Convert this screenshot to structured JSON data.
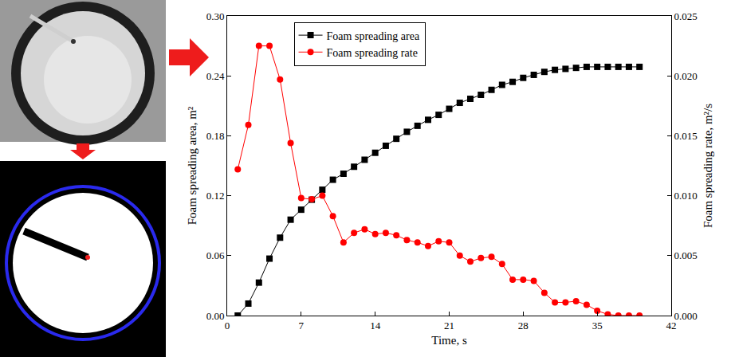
{
  "chart_data": {
    "type": "line",
    "x_label": "Time, s",
    "y_label": "Foam spreading area, m²",
    "y2_label": "Foam spreading rate, m²/s",
    "x": [
      1,
      2,
      3,
      4,
      5,
      6,
      7,
      8,
      9,
      10,
      11,
      12,
      13,
      14,
      15,
      16,
      17,
      18,
      19,
      20,
      21,
      22,
      23,
      24,
      25,
      26,
      27,
      28,
      29,
      30,
      31,
      32,
      33,
      34,
      35,
      36,
      37,
      38,
      39
    ],
    "series": [
      {
        "name": "Foam spreading area",
        "color": "#000000",
        "marker": "square",
        "line_style": "solid",
        "values": [
          0.0,
          0.012,
          0.033,
          0.057,
          0.078,
          0.096,
          0.106,
          0.116,
          0.126,
          0.136,
          0.142,
          0.149,
          0.156,
          0.163,
          0.17,
          0.177,
          0.184,
          0.19,
          0.196,
          0.201,
          0.207,
          0.213,
          0.217,
          0.221,
          0.226,
          0.231,
          0.234,
          0.238,
          0.241,
          0.244,
          0.246,
          0.247,
          0.248,
          0.249,
          0.249,
          0.249,
          0.249,
          0.249,
          0.249
        ]
      },
      {
        "name": "Foam spreading rate",
        "color": "#ff0000",
        "marker": "circle",
        "line_style": "solid",
        "axis": "y2",
        "values": [
          0.0122,
          0.0159,
          0.0225,
          0.0225,
          0.0197,
          0.0144,
          0.0098,
          0.0097,
          0.01,
          0.0083,
          0.0061,
          0.0069,
          0.0072,
          0.0068,
          0.0069,
          0.0067,
          0.0063,
          0.0061,
          0.0058,
          0.0062,
          0.0061,
          0.005,
          0.0045,
          0.0048,
          0.0049,
          0.0043,
          0.003,
          0.003,
          0.0029,
          0.0019,
          0.0011,
          0.0011,
          0.0012,
          0.0009,
          0.0004,
          0.0001,
          0.0,
          0.0,
          0.0
        ]
      }
    ],
    "xlim": [
      0,
      42
    ],
    "xticks": [
      0,
      7,
      14,
      21,
      28,
      35,
      42
    ],
    "ylim": [
      0,
      0.3
    ],
    "yticks": [
      {
        "value": 0,
        "label": "0.00"
      },
      0.06,
      0.12,
      0.18,
      0.24,
      {
        "value": 0.3,
        "label": "0.30"
      }
    ],
    "y2lim": [
      0,
      0.025
    ],
    "y2ticks": [
      {
        "value": 0,
        "label": "0.000"
      },
      0.005,
      {
        "value": 0.01,
        "label": "0.010"
      },
      0.015,
      {
        "value": 0.02,
        "label": "0.020"
      },
      0.025
    ],
    "legend": "top-left",
    "grid": false
  }
}
